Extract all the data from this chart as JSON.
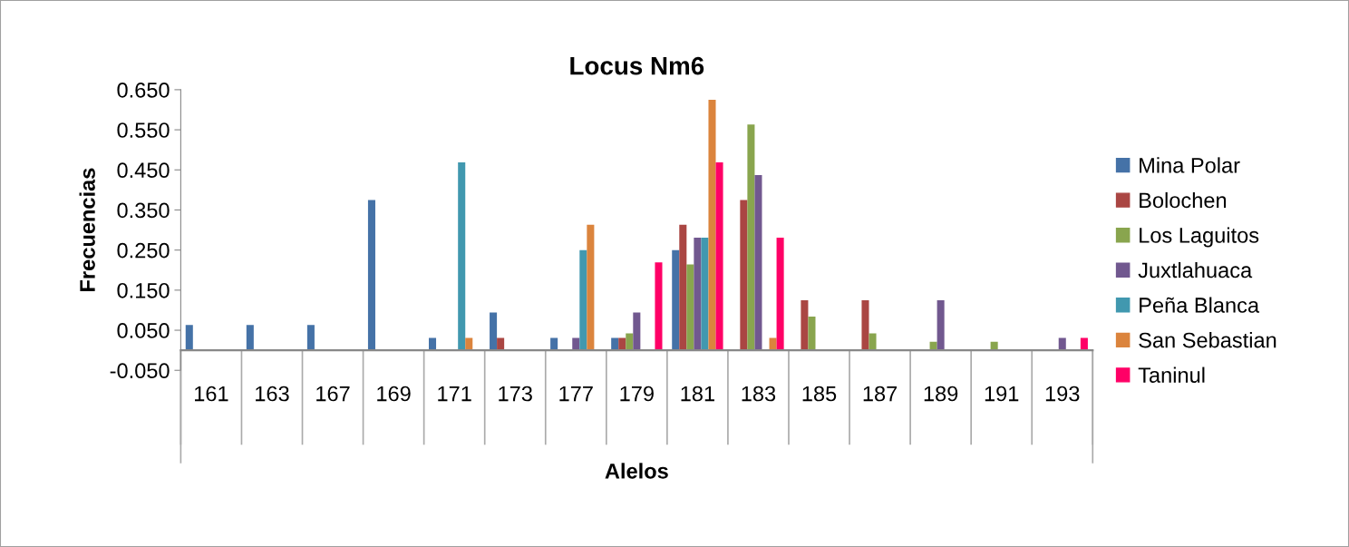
{
  "chart_data": {
    "type": "bar",
    "title": "Locus Nm6",
    "xlabel": "Alelos",
    "ylabel": "Frecuencias",
    "categories": [
      "161",
      "163",
      "167",
      "169",
      "171",
      "173",
      "177",
      "179",
      "181",
      "183",
      "185",
      "187",
      "189",
      "191",
      "193"
    ],
    "series": [
      {
        "name": "Mina Polar",
        "color": "#4572a7",
        "values": [
          0.063,
          0.063,
          0.063,
          0.375,
          0.031,
          0.094,
          0.031,
          0.031,
          0.25,
          0,
          0,
          0,
          0,
          0,
          0
        ]
      },
      {
        "name": "Bolochen",
        "color": "#aa4643",
        "values": [
          0,
          0,
          0,
          0,
          0,
          0.031,
          0,
          0.031,
          0.313,
          0.375,
          0.125,
          0.125,
          0,
          0,
          0
        ]
      },
      {
        "name": "Los Laguitos",
        "color": "#89a54e",
        "values": [
          0,
          0,
          0,
          0,
          0,
          0,
          0,
          0.042,
          0.214,
          0.563,
          0.084,
          0.042,
          0.021,
          0.021,
          0
        ]
      },
      {
        "name": "Juxtlahuaca",
        "color": "#71588f",
        "values": [
          0,
          0,
          0,
          0,
          0,
          0,
          0.031,
          0.094,
          0.281,
          0.437,
          0,
          0,
          0.125,
          0,
          0.031
        ]
      },
      {
        "name": "Peña Blanca",
        "color": "#4198af",
        "values": [
          0,
          0,
          0,
          0,
          0.469,
          0,
          0.25,
          0,
          0.281,
          0,
          0,
          0,
          0,
          0,
          0
        ]
      },
      {
        "name": "San Sebastian",
        "color": "#db843d",
        "values": [
          0,
          0,
          0,
          0,
          0.031,
          0,
          0.313,
          0,
          0.625,
          0.031,
          0,
          0,
          0,
          0,
          0
        ]
      },
      {
        "name": "Taninul",
        "color": "#ff0066",
        "values": [
          0,
          0,
          0,
          0,
          0,
          0,
          0,
          0.219,
          0.469,
          0.281,
          0,
          0,
          0,
          0,
          0.031
        ]
      }
    ],
    "ylim": [
      -0.05,
      0.65
    ],
    "yticks": [
      {
        "value": -0.05,
        "label": "-0.050"
      },
      {
        "value": 0.05,
        "label": "0.050"
      },
      {
        "value": 0.15,
        "label": "0.150"
      },
      {
        "value": 0.25,
        "label": "0.250"
      },
      {
        "value": 0.35,
        "label": "0.350"
      },
      {
        "value": 0.45,
        "label": "0.450"
      },
      {
        "value": 0.55,
        "label": "0.550"
      },
      {
        "value": 0.65,
        "label": "0.650"
      }
    ],
    "grid": false,
    "legend": "right"
  }
}
